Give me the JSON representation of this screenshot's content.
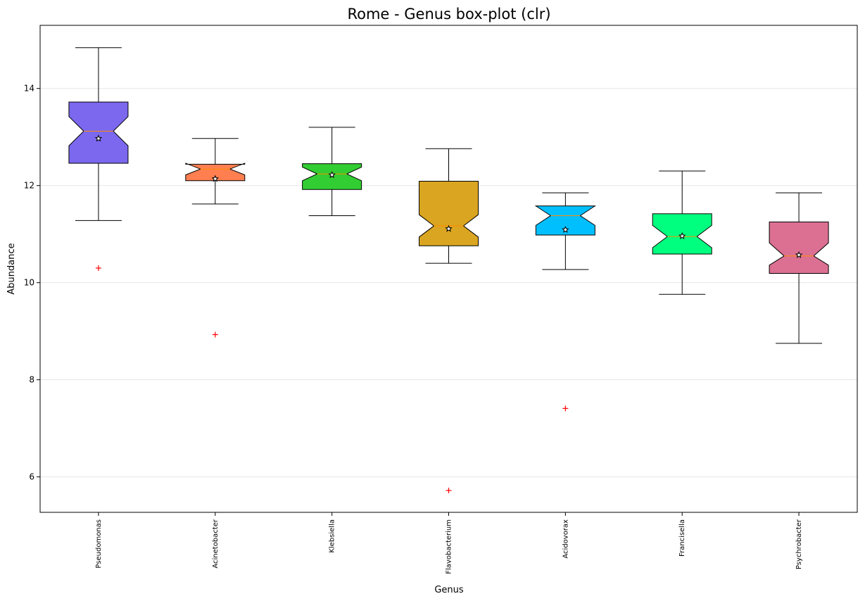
{
  "chart_data": {
    "type": "box",
    "title": "Rome - Genus box-plot (clr)",
    "xlabel": "Genus",
    "ylabel": "Abundance",
    "ylim": [
      5.27,
      15.3
    ],
    "yticks": [
      6,
      8,
      10,
      12,
      14
    ],
    "grid": "y",
    "notched": true,
    "categories": [
      "Pseudomonas",
      "Acinetobacter",
      "Klebsiella",
      "Flavobacterium",
      "Acidovorax",
      "Francisella",
      "Psychrobacter"
    ],
    "boxes": [
      {
        "category": "Pseudomonas",
        "color": "#7B68EE",
        "whisker_low": 11.28,
        "q1": 12.46,
        "median": 13.12,
        "q3": 13.72,
        "whisker_high": 14.84,
        "notch_low": 12.82,
        "notch_high": 13.42,
        "mean": 12.97,
        "outliers": [
          10.3
        ]
      },
      {
        "category": "Acinetobacter",
        "color": "#FF7F50",
        "whisker_low": 11.62,
        "q1": 12.1,
        "median": 12.34,
        "q3": 12.44,
        "whisker_high": 12.97,
        "notch_low": 12.22,
        "notch_high": 12.46,
        "mean": 12.14,
        "outliers": [
          8.93
        ]
      },
      {
        "category": "Klebsiella",
        "color": "#32CD32",
        "whisker_low": 11.38,
        "q1": 11.92,
        "median": 12.24,
        "q3": 12.45,
        "whisker_high": 13.2,
        "notch_low": 12.1,
        "notch_high": 12.38,
        "mean": 12.22,
        "outliers": []
      },
      {
        "category": "Flavobacterium",
        "color": "#DAA520",
        "whisker_low": 10.4,
        "q1": 10.76,
        "median": 11.17,
        "q3": 12.09,
        "whisker_high": 12.76,
        "notch_low": 10.94,
        "notch_high": 11.4,
        "mean": 11.11,
        "outliers": [
          5.72
        ]
      },
      {
        "category": "Acidovorax",
        "color": "#00BFFF",
        "whisker_low": 10.27,
        "q1": 10.98,
        "median": 11.38,
        "q3": 11.58,
        "whisker_high": 11.85,
        "notch_low": 11.18,
        "notch_high": 11.58,
        "mean": 11.09,
        "outliers": [
          7.41
        ]
      },
      {
        "category": "Francisella",
        "color": "#00FF7F",
        "whisker_low": 9.76,
        "q1": 10.59,
        "median": 10.95,
        "q3": 11.42,
        "whisker_high": 12.3,
        "notch_low": 10.72,
        "notch_high": 11.18,
        "mean": 10.96,
        "outliers": []
      },
      {
        "category": "Psychrobacter",
        "color": "#DB7093",
        "whisker_low": 8.75,
        "q1": 10.19,
        "median": 10.55,
        "q3": 11.25,
        "whisker_high": 11.85,
        "notch_low": 10.36,
        "notch_high": 10.82,
        "mean": 10.57,
        "outliers": []
      }
    ],
    "median_color": "#FF8C00",
    "outlier_color": "#FF0000",
    "outlier_marker": "+",
    "mean_marker": "star"
  }
}
